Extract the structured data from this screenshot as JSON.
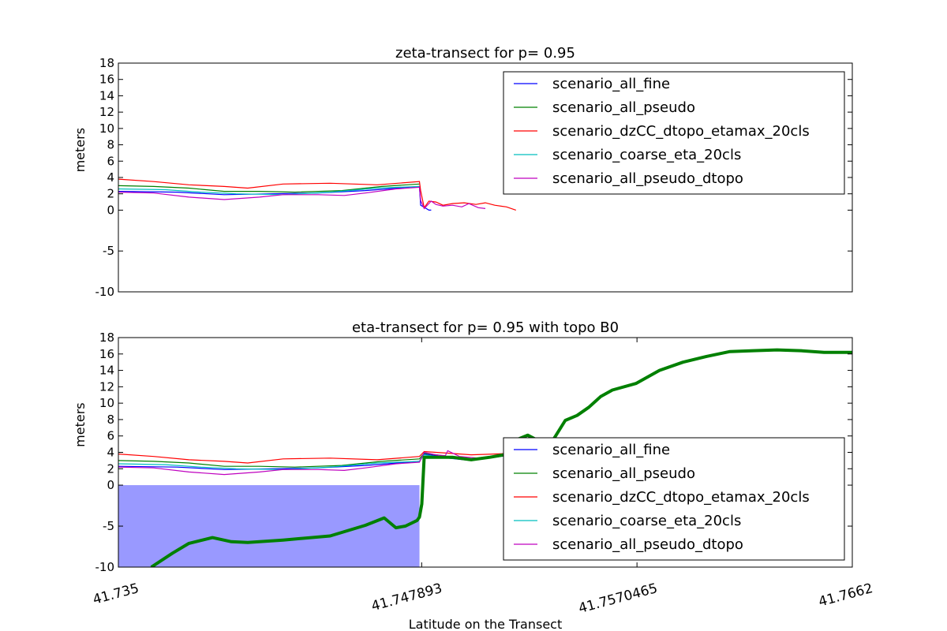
{
  "figure": {
    "xlabel": "Latitude on the Transect"
  },
  "colors": {
    "scenario_all_fine": "#0000ff",
    "scenario_all_pseudo": "#008000",
    "scenario_dzCC_dtopo_etamax_20cls": "#ff0000",
    "scenario_coarse_eta_20cls": "#00bfbf",
    "scenario_all_pseudo_dtopo": "#bf00bf",
    "topo_fill": "#9999ff",
    "topo_line": "#008000"
  },
  "chart_data": [
    {
      "type": "line",
      "title": "zeta-transect for p= 0.95",
      "xlabel": "",
      "ylabel": "meters",
      "xlim": [
        41.735,
        41.7662
      ],
      "ylim": [
        -10,
        18
      ],
      "yticks": [
        -10,
        -5,
        0,
        2,
        4,
        6,
        8,
        10,
        12,
        14,
        16,
        18
      ],
      "xticks": [],
      "legend": {
        "placement": "top-right",
        "entries": [
          "scenario_all_fine",
          "scenario_all_pseudo",
          "scenario_dzCC_dtopo_etamax_20cls",
          "scenario_coarse_eta_20cls",
          "scenario_all_pseudo_dtopo"
        ]
      },
      "series": [
        {
          "name": "scenario_all_fine",
          "x": [
            41.735,
            41.7375,
            41.7395,
            41.7415,
            41.7435,
            41.7455,
            41.7478,
            41.74785,
            41.7482,
            41.7483
          ],
          "y": [
            2.3,
            2.2,
            1.9,
            2.0,
            2.1,
            2.4,
            2.9,
            0.6,
            0.0,
            0.0
          ]
        },
        {
          "name": "scenario_all_pseudo",
          "x": [
            41.735,
            41.7365,
            41.738,
            41.7395,
            41.741,
            41.7425,
            41.7445,
            41.7462,
            41.7478
          ],
          "y": [
            3.0,
            2.9,
            2.7,
            2.3,
            2.3,
            2.2,
            2.4,
            2.9,
            3.2
          ]
        },
        {
          "name": "scenario_dzCC_dtopo_etamax_20cls",
          "x": [
            41.735,
            41.7365,
            41.738,
            41.7395,
            41.7405,
            41.742,
            41.744,
            41.746,
            41.7478,
            41.74785,
            41.748,
            41.7482,
            41.7485,
            41.7488,
            41.7492,
            41.7497,
            41.7502,
            41.7506,
            41.751,
            41.7515,
            41.7519
          ],
          "y": [
            3.8,
            3.5,
            3.1,
            2.9,
            2.7,
            3.2,
            3.3,
            3.1,
            3.5,
            2.4,
            0.3,
            1.1,
            1.0,
            0.6,
            0.8,
            0.9,
            0.7,
            0.9,
            0.6,
            0.4,
            0.0
          ]
        },
        {
          "name": "scenario_coarse_eta_20cls",
          "x": [
            41.735,
            41.737,
            41.7385,
            41.74,
            41.742,
            41.744,
            41.746,
            41.7478
          ],
          "y": [
            2.6,
            2.5,
            2.2,
            2.0,
            1.9,
            2.2,
            2.7,
            2.9
          ]
        },
        {
          "name": "scenario_all_pseudo_dtopo",
          "x": [
            41.735,
            41.7365,
            41.738,
            41.7395,
            41.741,
            41.742,
            41.7435,
            41.7446,
            41.7455,
            41.7468,
            41.7478,
            41.74785,
            41.748,
            41.7483,
            41.7485,
            41.7488,
            41.7492,
            41.7496,
            41.7499,
            41.7503,
            41.7506
          ],
          "y": [
            2.2,
            2.1,
            1.6,
            1.3,
            1.6,
            1.9,
            1.9,
            1.8,
            2.1,
            2.6,
            2.8,
            1.2,
            0.2,
            1.1,
            0.7,
            0.5,
            0.6,
            0.4,
            0.8,
            0.3,
            0.2
          ]
        }
      ]
    },
    {
      "type": "line",
      "title": "eta-transect for p= 0.95 with topo B0",
      "xlabel": "Latitude on the Transect",
      "ylabel": "meters",
      "xlim": [
        41.735,
        41.7662
      ],
      "ylim": [
        -10,
        18
      ],
      "yticks": [
        -10,
        -5,
        0,
        2,
        4,
        6,
        8,
        10,
        12,
        14,
        16,
        18
      ],
      "xticks": [
        41.735,
        41.747893,
        41.7570465,
        41.7662
      ],
      "xtick_labels": [
        "41.735",
        "41.747893",
        "41.7570465",
        "41.7662"
      ],
      "legend": {
        "placement": "lower-right",
        "entries": [
          "scenario_all_fine",
          "scenario_all_pseudo",
          "scenario_dzCC_dtopo_etamax_20cls",
          "scenario_coarse_eta_20cls",
          "scenario_all_pseudo_dtopo"
        ]
      },
      "fill": {
        "name": "water (topo below 0)",
        "x_start": 41.735,
        "x_end": 41.7478,
        "to": 0
      },
      "topo": {
        "name": "topo B0",
        "x": [
          41.7364,
          41.7373,
          41.738,
          41.739,
          41.7398,
          41.7405,
          41.742,
          41.744,
          41.7455,
          41.7463,
          41.7468,
          41.7472,
          41.7477,
          41.7478,
          41.7479,
          41.748,
          41.7485,
          41.7492,
          41.75,
          41.7508,
          41.7514,
          41.7519,
          41.7524,
          41.7528,
          41.753,
          41.7535,
          41.754,
          41.7545,
          41.755,
          41.7555,
          41.756,
          41.757,
          41.758,
          41.759,
          41.76,
          41.761,
          41.762,
          41.763,
          41.764,
          41.765,
          41.7662
        ],
        "y": [
          -10.0,
          -8.3,
          -7.1,
          -6.4,
          -6.9,
          -7.0,
          -6.7,
          -6.2,
          -4.9,
          -4.0,
          -5.2,
          -5.0,
          -4.3,
          -3.9,
          -2.3,
          3.4,
          3.4,
          3.4,
          3.1,
          3.4,
          3.7,
          5.5,
          6.1,
          5.5,
          5.4,
          5.6,
          7.9,
          8.5,
          9.5,
          10.8,
          11.6,
          12.4,
          14.0,
          15.0,
          15.7,
          16.3,
          16.4,
          16.5,
          16.4,
          16.2,
          16.2
        ]
      },
      "series": [
        {
          "name": "scenario_all_fine",
          "x": [
            41.735,
            41.7375,
            41.7395,
            41.7415,
            41.7435,
            41.7455,
            41.7478,
            41.748,
            41.7485,
            41.749,
            41.75,
            41.751,
            41.7518
          ],
          "y": [
            2.3,
            2.2,
            1.9,
            2.0,
            2.1,
            2.4,
            2.9,
            3.8,
            3.6,
            3.3,
            3.0,
            3.4,
            3.7
          ]
        },
        {
          "name": "scenario_all_pseudo",
          "x": [
            41.735,
            41.7365,
            41.738,
            41.7395,
            41.741,
            41.7425,
            41.7445,
            41.7462,
            41.7478,
            41.748,
            41.7485,
            41.749,
            41.75,
            41.751,
            41.7518
          ],
          "y": [
            3.0,
            2.9,
            2.7,
            2.3,
            2.3,
            2.2,
            2.4,
            2.9,
            3.2,
            3.9,
            3.7,
            3.5,
            3.2,
            3.5,
            3.8
          ]
        },
        {
          "name": "scenario_dzCC_dtopo_etamax_20cls",
          "x": [
            41.735,
            41.7365,
            41.738,
            41.7395,
            41.7405,
            41.742,
            41.744,
            41.746,
            41.7478,
            41.748,
            41.7485,
            41.749,
            41.75,
            41.751,
            41.7519
          ],
          "y": [
            3.8,
            3.5,
            3.1,
            2.9,
            2.7,
            3.2,
            3.3,
            3.1,
            3.5,
            4.1,
            4.0,
            3.9,
            3.7,
            3.8,
            3.9
          ]
        },
        {
          "name": "scenario_coarse_eta_20cls",
          "x": [
            41.735,
            41.737,
            41.7385,
            41.74,
            41.742,
            41.744,
            41.746,
            41.7478,
            41.748,
            41.7485,
            41.749,
            41.75,
            41.751
          ],
          "y": [
            2.6,
            2.5,
            2.2,
            2.0,
            1.9,
            2.2,
            2.7,
            2.9,
            3.7,
            3.5,
            3.3,
            3.1,
            3.4
          ]
        },
        {
          "name": "scenario_all_pseudo_dtopo",
          "x": [
            41.735,
            41.7365,
            41.738,
            41.7395,
            41.741,
            41.742,
            41.7435,
            41.7446,
            41.7455,
            41.7468,
            41.7478,
            41.748,
            41.7485,
            41.7489,
            41.749,
            41.7495,
            41.7503,
            41.751
          ],
          "y": [
            2.2,
            2.1,
            1.6,
            1.3,
            1.6,
            1.9,
            1.9,
            1.8,
            2.1,
            2.6,
            2.8,
            4.0,
            3.7,
            3.6,
            4.2,
            3.5,
            3.3,
            3.5
          ]
        }
      ]
    }
  ]
}
